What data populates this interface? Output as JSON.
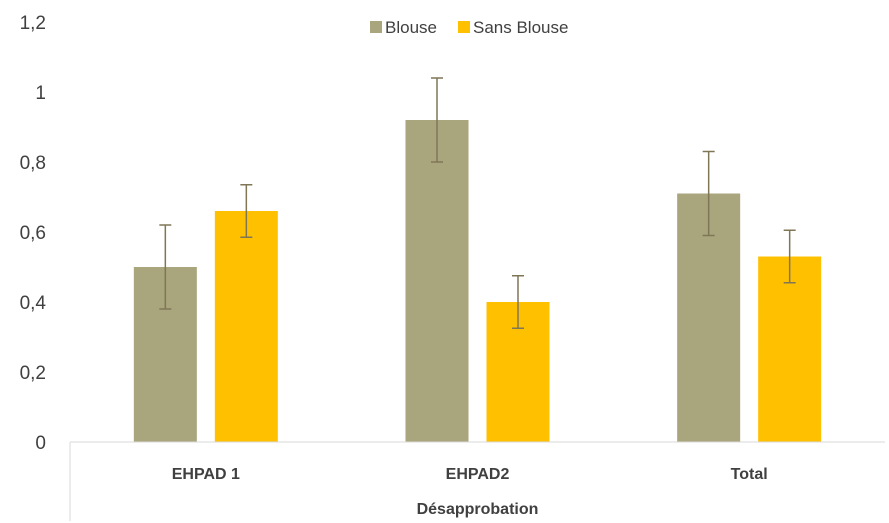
{
  "chart_data": {
    "type": "bar",
    "categories": [
      "EHPAD 1",
      "EHPAD2",
      "Total"
    ],
    "group_label": "Désapprobation",
    "series": [
      {
        "name": "Blouse",
        "color": "#a9a57c",
        "values": [
          0.5,
          0.92,
          0.71
        ],
        "error": [
          0.12,
          0.12,
          0.12
        ]
      },
      {
        "name": "Sans Blouse",
        "color": "#ffc000",
        "values": [
          0.66,
          0.4,
          0.53
        ],
        "error": [
          0.075,
          0.075,
          0.075
        ]
      }
    ],
    "error_bar_color": "#7f7656",
    "yticks": [
      "0",
      "0,2",
      "0,4",
      "0,6",
      "0,8",
      "1",
      "1,2"
    ],
    "ylim": [
      0,
      1.2
    ],
    "legend_position": "top-center",
    "grid": false
  }
}
